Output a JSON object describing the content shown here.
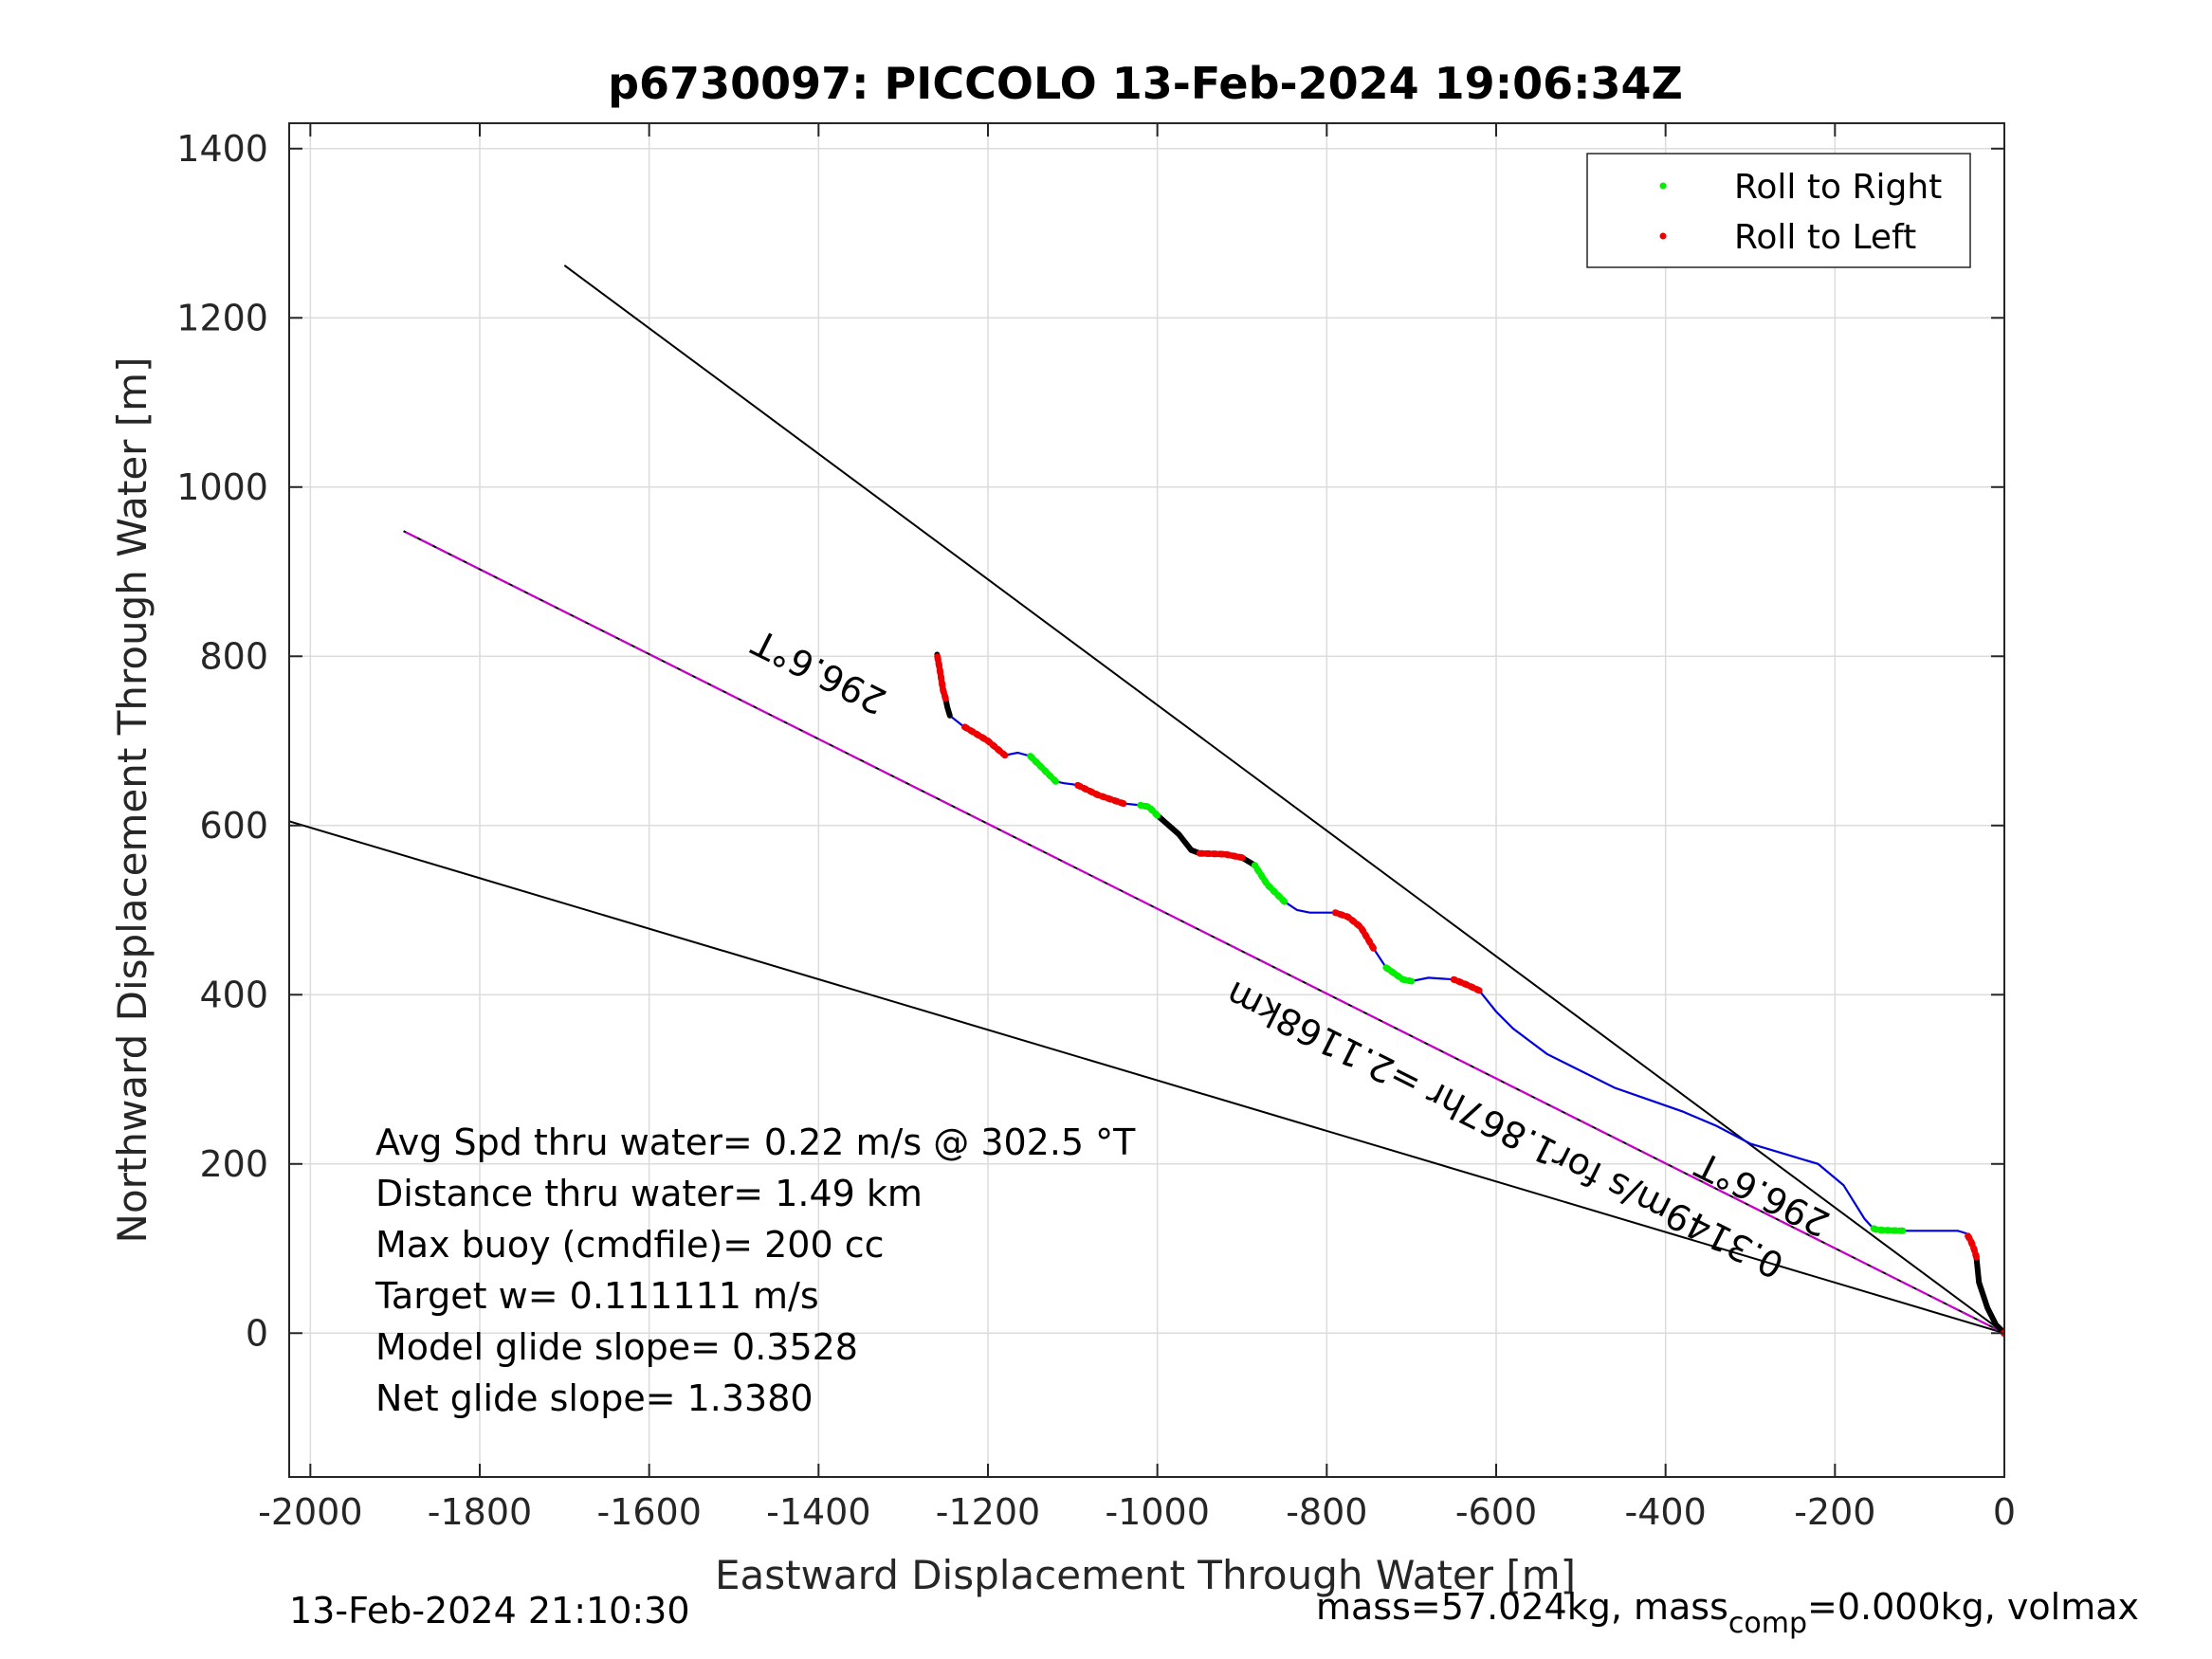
{
  "chart_data": {
    "type": "line",
    "title": "p6730097: PICCOLO 13-Feb-2024 19:06:34Z",
    "xlabel": "Eastward Displacement Through Water [m]",
    "ylabel": "Northward Displacement Through Water [m]",
    "xlim": [
      -2025,
      0
    ],
    "ylim": [
      -170,
      1430
    ],
    "xticks": [
      -2000,
      -1800,
      -1600,
      -1400,
      -1200,
      -1000,
      -800,
      -600,
      -400,
      -200,
      0
    ],
    "yticks": [
      0,
      200,
      400,
      600,
      800,
      1000,
      1200,
      1400
    ],
    "grid": true,
    "legend": {
      "placement": "top-right",
      "entries": [
        {
          "label": "Roll to Right",
          "color": "#00ee00"
        },
        {
          "label": "Roll to Left",
          "color": "#ee0000"
        }
      ]
    },
    "series": [
      {
        "color": "#0000dd",
        "x": [
          0,
          -10,
          -20,
          -30,
          -33,
          -36,
          -40,
          -45,
          -55,
          -80,
          -120,
          -150,
          -155,
          -165,
          -190,
          -220,
          -260,
          -300,
          -340,
          -380,
          -420,
          -460,
          -500,
          -540,
          -560,
          -580,
          -600,
          -620,
          -635,
          -650,
          -680,
          -700,
          -710,
          -730,
          -745,
          -760,
          -775,
          -790,
          -820,
          -835,
          -850,
          -870,
          -885,
          -900,
          -920,
          -950,
          -960,
          -975,
          -1000,
          -1010,
          -1020,
          -1040,
          -1070,
          -1095,
          -1110,
          -1120,
          -1130,
          -1150,
          -1165,
          -1180,
          -1200,
          -1230,
          -1245,
          -1248,
          -1250,
          -1253,
          -1257,
          -1260
        ],
        "y": [
          0,
          10,
          30,
          60,
          90,
          100,
          110,
          118,
          121,
          121,
          121,
          122,
          124,
          135,
          175,
          200,
          212,
          224,
          245,
          262,
          276,
          290,
          310,
          330,
          345,
          360,
          380,
          405,
          412,
          418,
          420,
          416,
          418,
          432,
          455,
          480,
          492,
          497,
          497,
          500,
          510,
          530,
          553,
          562,
          566,
          567,
          571,
          590,
          612,
          622,
          624,
          626,
          636,
          648,
          650,
          652,
          662,
          682,
          686,
          683,
          700,
          718,
          730,
          740,
          750,
          760,
          785,
          802
        ]
      }
    ],
    "colors": {
      "track": "#0000dd",
      "roll_right": "#00ee00",
      "roll_left": "#ee0000",
      "dive_segments": "#000000",
      "heading_line": "#cc00cc",
      "reference_lines": "#000000"
    },
    "annotations": {
      "heading_label_1": "296.6°T",
      "heading_label_2": "296.6°T",
      "current_label": "0.3149m/s for1.867hr =2.1168km",
      "stats": [
        "Avg Spd thru water=  0.22 m/s @ 302.5 °T",
        "Distance thru water=  1.49 km",
        "Max buoy (cmdfile)= 200 cc",
        "Target w= 0.111111 m/s",
        "Model glide slope= 0.3528",
        "Net glide slope= 1.3380"
      ]
    },
    "footer": {
      "timestamp": "13-Feb-2024 21:10:30",
      "mass_prefix": "mass=57.024kg, mass",
      "mass_sub": "comp",
      "mass_suffix": "=0.000kg, volmax"
    }
  }
}
